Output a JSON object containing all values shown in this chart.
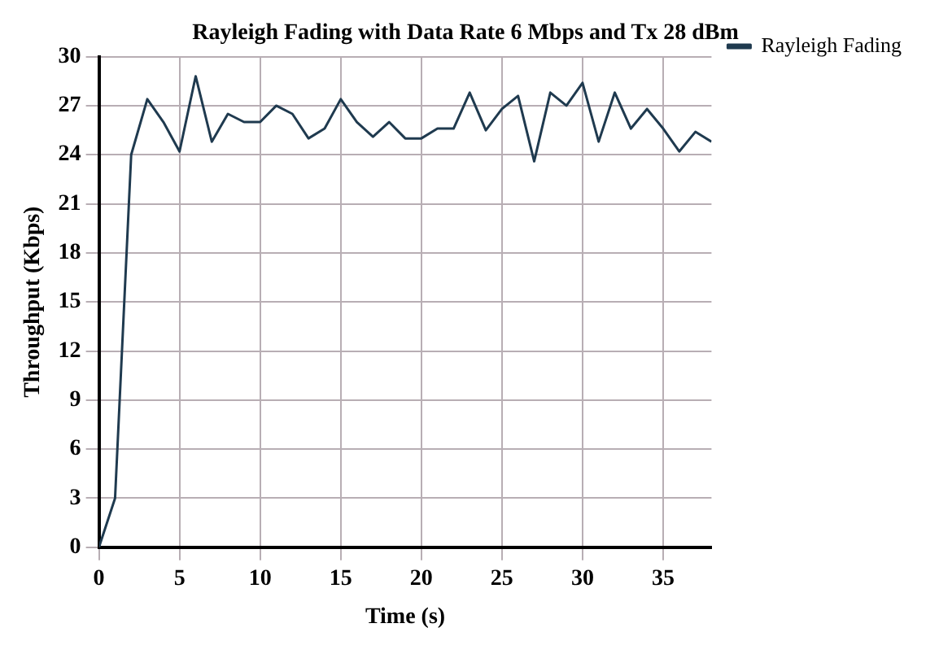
{
  "chart_data": {
    "type": "line",
    "title": "Rayleigh Fading with Data Rate 6 Mbps and Tx 28 dBm",
    "xlabel": "Time (s)",
    "ylabel": "Throughput (Kbps)",
    "x": [
      0,
      1,
      2,
      3,
      4,
      5,
      6,
      7,
      8,
      9,
      10,
      11,
      12,
      13,
      14,
      15,
      16,
      17,
      18,
      19,
      20,
      21,
      22,
      23,
      24,
      25,
      26,
      27,
      28,
      29,
      30,
      31,
      32,
      33,
      34,
      35,
      36,
      37,
      38
    ],
    "series": [
      {
        "name": "Rayleigh Fading",
        "color": "#1f3a4f",
        "values": [
          0,
          3,
          24,
          27.4,
          26,
          24.2,
          28.8,
          24.8,
          26.5,
          26,
          26,
          27,
          26.5,
          25,
          25.6,
          27.4,
          26,
          25.1,
          26,
          25,
          25,
          25.6,
          25.6,
          27.8,
          25.5,
          26.8,
          27.6,
          23.6,
          27.8,
          27,
          28.4,
          24.8,
          27.8,
          25.6,
          26.8,
          25.6,
          24.2,
          25.4,
          24.8
        ]
      }
    ],
    "xlim": [
      0,
      38
    ],
    "xticks": [
      0,
      5,
      10,
      15,
      20,
      25,
      30,
      35
    ],
    "ylim": [
      0,
      30
    ],
    "yticks": [
      0,
      3,
      6,
      9,
      12,
      15,
      18,
      21,
      24,
      27,
      30
    ],
    "grid": true,
    "legend": "top right",
    "marker": "none",
    "line_style": "solid"
  }
}
